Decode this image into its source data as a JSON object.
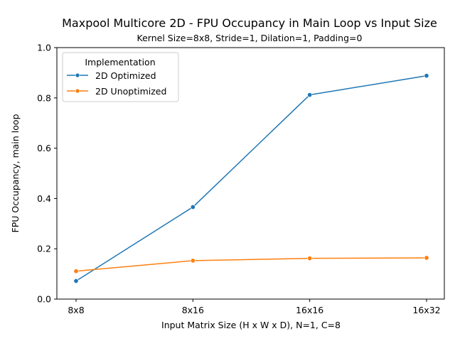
{
  "chart_data": {
    "type": "line",
    "title": "Maxpool Multicore 2D - FPU Occupancy in Main Loop vs Input Size",
    "subtitle": "Kernel Size=8x8, Stride=1, Dilation=1, Padding=0",
    "xlabel": "Input Matrix Size (H x W x D), N=1, C=8",
    "ylabel": "FPU Occupancy, main loop",
    "categories": [
      "8x8",
      "8x16",
      "16x16",
      "16x32"
    ],
    "ylim": [
      0.0,
      1.0
    ],
    "yticks": [
      0.0,
      0.2,
      0.4,
      0.6,
      0.8,
      1.0
    ],
    "ytick_labels": [
      "0.0",
      "0.2",
      "0.4",
      "0.6",
      "0.8",
      "1.0"
    ],
    "grid": false,
    "legend": {
      "title": "Implementation",
      "placement": "top-left"
    },
    "series": [
      {
        "name": "2D Optimized",
        "color": "#1f77b4",
        "values": [
          0.072,
          0.366,
          0.812,
          0.888
        ]
      },
      {
        "name": "2D Unoptimized",
        "color": "#ff7f0e",
        "values": [
          0.111,
          0.153,
          0.162,
          0.164
        ]
      }
    ]
  }
}
